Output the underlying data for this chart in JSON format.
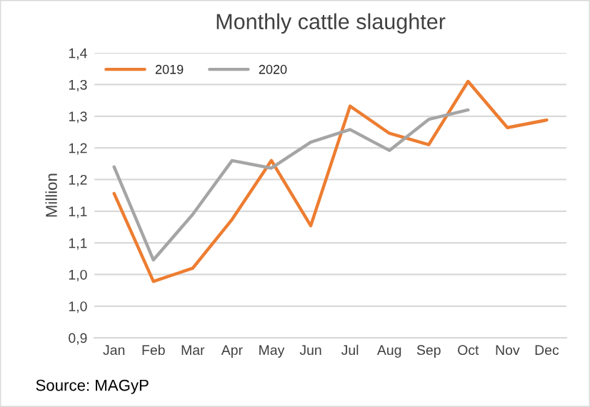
{
  "chart_data": {
    "type": "line",
    "title": "Monthly cattle slaughter",
    "ylabel": "Million",
    "categories": [
      "Jan",
      "Feb",
      "Mar",
      "Apr",
      "May",
      "Jun",
      "Jul",
      "Aug",
      "Sep",
      "Oct",
      "Nov",
      "Dec"
    ],
    "series": [
      {
        "name": "2019",
        "color": "#ed7d31",
        "values": [
          1.128,
          0.989,
          1.01,
          1.087,
          1.18,
          1.077,
          1.266,
          1.223,
          1.205,
          1.305,
          1.232,
          1.244
        ]
      },
      {
        "name": "2020",
        "color": "#a5a5a5",
        "values": [
          1.17,
          1.023,
          1.095,
          1.18,
          1.168,
          1.209,
          1.229,
          1.196,
          1.245,
          1.26,
          null,
          null
        ]
      }
    ],
    "ylim": [
      0.9,
      1.35
    ],
    "yticks": [
      {
        "value": 0.9,
        "label": "0,9"
      },
      {
        "value": 0.95,
        "label": "1,0"
      },
      {
        "value": 1.0,
        "label": "1,0"
      },
      {
        "value": 1.05,
        "label": "1,1"
      },
      {
        "value": 1.1,
        "label": "1,1"
      },
      {
        "value": 1.15,
        "label": "1,2"
      },
      {
        "value": 1.2,
        "label": "1,2"
      },
      {
        "value": 1.25,
        "label": "1,3"
      },
      {
        "value": 1.3,
        "label": "1,3"
      },
      {
        "value": 1.35,
        "label": "1,4"
      }
    ],
    "grid": "y",
    "legend": "top left",
    "marker": "none",
    "line_style": "solid",
    "annotations": [
      "Source: MAGyP"
    ]
  }
}
